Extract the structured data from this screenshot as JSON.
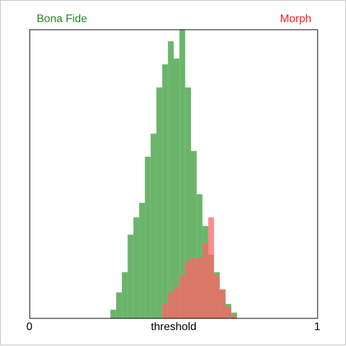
{
  "chart_data": {
    "type": "histogram",
    "title": "",
    "xlabel": "threshold",
    "ylabel": "",
    "xlim": [
      0,
      1
    ],
    "x_ticks": [
      "0",
      "1"
    ],
    "grid": false,
    "legend": {
      "placement": "top",
      "entries": [
        "Bona Fide",
        "Morph"
      ]
    },
    "bin_width": 0.02,
    "series": [
      {
        "name": "Bona Fide",
        "color": "#5bad5b",
        "bins": [
          [
            0.28,
            0.03
          ],
          [
            0.3,
            0.09
          ],
          [
            0.32,
            0.16
          ],
          [
            0.34,
            0.29
          ],
          [
            0.36,
            0.35
          ],
          [
            0.38,
            0.4
          ],
          [
            0.4,
            0.56
          ],
          [
            0.42,
            0.64
          ],
          [
            0.44,
            0.8
          ],
          [
            0.46,
            0.88
          ],
          [
            0.48,
            0.96
          ],
          [
            0.5,
            0.9
          ],
          [
            0.52,
            1.0
          ],
          [
            0.54,
            0.8
          ],
          [
            0.56,
            0.58
          ],
          [
            0.58,
            0.43
          ],
          [
            0.6,
            0.32
          ],
          [
            0.62,
            0.22
          ],
          [
            0.64,
            0.16
          ],
          [
            0.66,
            0.1
          ],
          [
            0.68,
            0.05
          ],
          [
            0.7,
            0.02
          ]
        ]
      },
      {
        "name": "Morph",
        "color": "#ff6464",
        "bins": [
          [
            0.46,
            0.05
          ],
          [
            0.48,
            0.09
          ],
          [
            0.5,
            0.11
          ],
          [
            0.52,
            0.15
          ],
          [
            0.54,
            0.2
          ],
          [
            0.56,
            0.21
          ],
          [
            0.58,
            0.21
          ],
          [
            0.6,
            0.26
          ],
          [
            0.62,
            0.35
          ],
          [
            0.64,
            0.15
          ],
          [
            0.66,
            0.1
          ],
          [
            0.68,
            0.04
          ],
          [
            0.7,
            0.01
          ]
        ]
      }
    ]
  }
}
